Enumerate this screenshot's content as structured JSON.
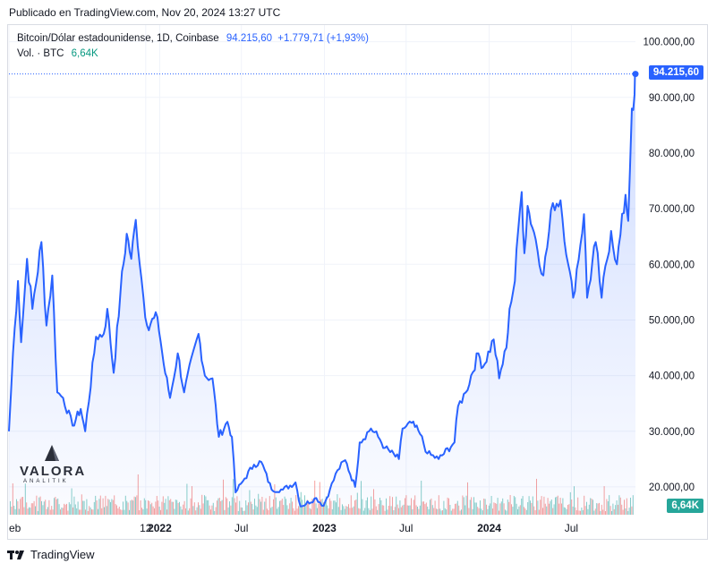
{
  "header": {
    "published": "Publicado en TradingView.com, Nov 20, 2024 13:27 UTC"
  },
  "legend": {
    "symbol": "Bitcoin/Dólar estadounidense, 1D, Coinbase",
    "price": "94.215,60",
    "change": "+1.779,71 (+1,93%)",
    "vol_label": "Vol. · BTC",
    "vol_value": "6,64K"
  },
  "logo": {
    "word": "VALORA",
    "sub": "ANALITIK"
  },
  "footer": {
    "brand": "TradingView"
  },
  "colors": {
    "line": "#2962ff",
    "up": "#26a69a",
    "down": "#ef5350",
    "grid": "#f0f3fa"
  },
  "chart_data": {
    "type": "area",
    "title": "Bitcoin/Dólar estadounidense, 1D, Coinbase",
    "x_range": [
      "2021-02-01",
      "2024-11-20"
    ],
    "ylim": [
      15000,
      103000
    ],
    "y_ticks": [
      20000,
      30000,
      40000,
      50000,
      60000,
      70000,
      80000,
      90000,
      100000
    ],
    "y_tick_labels": [
      "20.000,00",
      "30.000,00",
      "40.000,00",
      "50.000,00",
      "60.000,00",
      "70.000,00",
      "80.000,00",
      "90.000,00",
      "100.000,00"
    ],
    "x_ticks": [
      "2021-02-01",
      "2021-12-01",
      "2022-01-01",
      "2022-07-01",
      "2023-01-01",
      "2023-07-01",
      "2024-01-01",
      "2024-07-01"
    ],
    "x_tick_labels": [
      "eb",
      "12",
      "2022",
      "Jul",
      "2023",
      "Jul",
      "2024",
      "Jul"
    ],
    "last_price": 94215.6,
    "last_price_label": "94.215,60",
    "last_volume_label": "6,64K",
    "series": [
      {
        "name": "BTC/USD close",
        "points": [
          [
            "2021-02-01",
            30000
          ],
          [
            "2021-02-10",
            44000
          ],
          [
            "2021-02-21",
            57000
          ],
          [
            "2021-02-28",
            46000
          ],
          [
            "2021-03-13",
            61000
          ],
          [
            "2021-03-25",
            52000
          ],
          [
            "2021-04-14",
            64000
          ],
          [
            "2021-04-25",
            49000
          ],
          [
            "2021-05-08",
            58000
          ],
          [
            "2021-05-19",
            37000
          ],
          [
            "2021-06-01",
            36000
          ],
          [
            "2021-06-22",
            31000
          ],
          [
            "2021-07-10",
            34000
          ],
          [
            "2021-07-20",
            30000
          ],
          [
            "2021-08-13",
            47000
          ],
          [
            "2021-08-30",
            47500
          ],
          [
            "2021-09-07",
            52000
          ],
          [
            "2021-09-21",
            40500
          ],
          [
            "2021-10-06",
            55000
          ],
          [
            "2021-10-20",
            65500
          ],
          [
            "2021-10-30",
            61000
          ],
          [
            "2021-11-09",
            68000
          ],
          [
            "2021-11-26",
            54000
          ],
          [
            "2021-12-04",
            49000
          ],
          [
            "2021-12-27",
            50500
          ],
          [
            "2022-01-10",
            42000
          ],
          [
            "2022-01-24",
            36000
          ],
          [
            "2022-02-10",
            44000
          ],
          [
            "2022-02-24",
            37000
          ],
          [
            "2022-03-28",
            47500
          ],
          [
            "2022-04-11",
            40000
          ],
          [
            "2022-04-28",
            39500
          ],
          [
            "2022-05-12",
            29000
          ],
          [
            "2022-05-31",
            31700
          ],
          [
            "2022-06-10",
            29000
          ],
          [
            "2022-06-18",
            19000
          ],
          [
            "2022-07-08",
            21500
          ],
          [
            "2022-07-29",
            24000
          ],
          [
            "2022-08-14",
            24500
          ],
          [
            "2022-09-06",
            19500
          ],
          [
            "2022-10-01",
            19500
          ],
          [
            "2022-10-29",
            20800
          ],
          [
            "2022-11-09",
            16500
          ],
          [
            "2022-12-14",
            18000
          ],
          [
            "2022-12-30",
            16600
          ],
          [
            "2023-01-13",
            19500
          ],
          [
            "2023-01-30",
            23000
          ],
          [
            "2023-02-16",
            24800
          ],
          [
            "2023-03-10",
            20000
          ],
          [
            "2023-03-20",
            28000
          ],
          [
            "2023-04-14",
            30500
          ],
          [
            "2023-04-30",
            29000
          ],
          [
            "2023-05-15",
            27000
          ],
          [
            "2023-06-15",
            25000
          ],
          [
            "2023-06-23",
            30500
          ],
          [
            "2023-07-13",
            31500
          ],
          [
            "2023-08-01",
            29500
          ],
          [
            "2023-08-17",
            26000
          ],
          [
            "2023-09-11",
            25000
          ],
          [
            "2023-10-16",
            28000
          ],
          [
            "2023-10-24",
            34500
          ],
          [
            "2023-11-10",
            37000
          ],
          [
            "2023-12-08",
            44000
          ],
          [
            "2023-12-18",
            41500
          ],
          [
            "2024-01-11",
            46500
          ],
          [
            "2024-01-23",
            39500
          ],
          [
            "2024-02-08",
            45000
          ],
          [
            "2024-02-15",
            52000
          ],
          [
            "2024-02-27",
            57000
          ],
          [
            "2024-03-05",
            66000
          ],
          [
            "2024-03-13",
            73000
          ],
          [
            "2024-03-19",
            62000
          ],
          [
            "2024-03-26",
            70500
          ],
          [
            "2024-04-13",
            64500
          ],
          [
            "2024-04-30",
            58000
          ],
          [
            "2024-05-21",
            71000
          ],
          [
            "2024-06-07",
            71500
          ],
          [
            "2024-06-24",
            60000
          ],
          [
            "2024-07-05",
            54000
          ],
          [
            "2024-07-29",
            69000
          ],
          [
            "2024-08-05",
            54000
          ],
          [
            "2024-08-24",
            64000
          ],
          [
            "2024-09-06",
            54000
          ],
          [
            "2024-09-27",
            66000
          ],
          [
            "2024-10-10",
            60000
          ],
          [
            "2024-10-29",
            72500
          ],
          [
            "2024-11-04",
            67800
          ],
          [
            "2024-11-12",
            88000
          ],
          [
            "2024-11-18",
            90500
          ],
          [
            "2024-11-20",
            94215.6
          ]
        ]
      },
      {
        "name": "Volume (BTC)",
        "points": []
      }
    ]
  }
}
